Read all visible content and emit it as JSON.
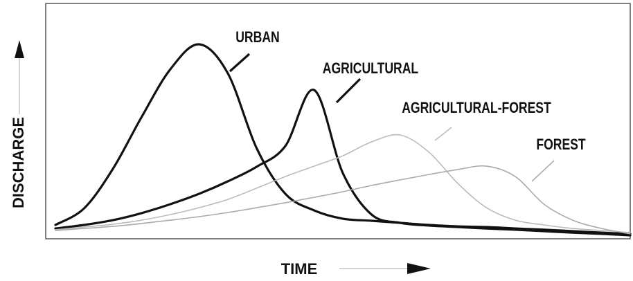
{
  "chart_data": {
    "type": "line",
    "xlabel": "TIME",
    "ylabel": "DISCHARGE",
    "x": [
      0,
      5,
      10,
      15,
      20,
      25,
      30,
      35,
      40,
      45,
      50,
      55,
      60,
      65,
      70,
      75,
      80,
      85,
      90,
      95,
      100
    ],
    "xlim": [
      0,
      100
    ],
    "ylim": [
      0,
      100
    ],
    "series": [
      {
        "name": "URBAN",
        "color": "#111111",
        "values": [
          5,
          13,
          32,
          57,
          80,
          92,
          78,
          42,
          20,
          12,
          8,
          7,
          6,
          5,
          4.3,
          4,
          3.3,
          2.7,
          2,
          1.3,
          0.7
        ]
      },
      {
        "name": "AGRICULTURAL",
        "color": "#111111",
        "values": [
          3.3,
          5,
          7.3,
          10.7,
          15,
          20,
          26,
          33,
          43,
          70,
          30,
          10,
          6,
          4.7,
          4,
          3.3,
          2.7,
          2,
          1.3,
          0.7,
          0
        ]
      },
      {
        "name": "AGRICULTURAL-FOREST",
        "color": "#bbbbbb",
        "values": [
          2.7,
          4,
          5.3,
          7.3,
          10,
          13.3,
          17.3,
          22.7,
          28.3,
          33.3,
          38.3,
          45,
          48.3,
          40,
          25,
          13.3,
          7.3,
          5,
          3.3,
          2.3,
          1.3
        ]
      },
      {
        "name": "FOREST",
        "color": "#aaaaaa",
        "values": [
          2.3,
          3.3,
          4.3,
          5.7,
          7.3,
          9,
          11,
          13.3,
          15.7,
          18.3,
          21,
          24,
          26.7,
          29.3,
          31.7,
          33.3,
          28.3,
          15,
          7.3,
          3.3,
          0.7
        ]
      }
    ]
  }
}
